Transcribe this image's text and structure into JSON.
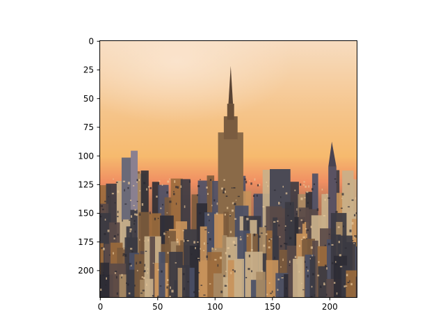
{
  "figure": {
    "background": "#ffffff",
    "subject": "city-skyline-at-sunset-icon",
    "image_colors": {
      "sky_top": "#f7dcc0",
      "sky_mid": "#f6ba6e",
      "sky_horizon": "#f08f62",
      "buildings_dark": "#3b3a42",
      "buildings_warm": "#9a6a3c",
      "buildings_light": "#c9b08a"
    }
  },
  "chart_data": {
    "type": "image",
    "title": "",
    "xlabel": "",
    "ylabel": "",
    "xlim": [
      0,
      224
    ],
    "ylim": [
      224,
      0
    ],
    "x_ticks": [
      "0",
      "50",
      "100",
      "150",
      "200"
    ],
    "y_ticks": [
      "0",
      "25",
      "50",
      "75",
      "100",
      "125",
      "150",
      "175",
      "200"
    ],
    "grid": false
  }
}
